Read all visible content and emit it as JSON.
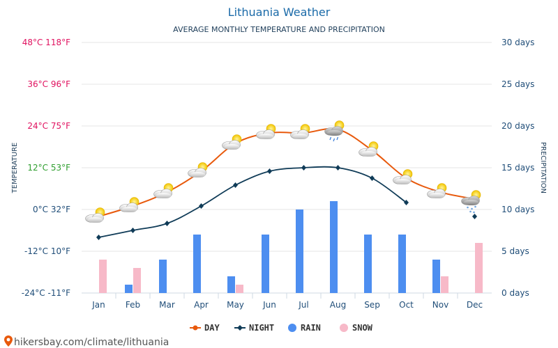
{
  "chart_data": {
    "type": "line+bar",
    "title": "Lithuania Weather",
    "subtitle": "AVERAGE MONTHLY TEMPERATURE AND PRECIPITATION",
    "categories": [
      "Jan",
      "Feb",
      "Mar",
      "Apr",
      "May",
      "Jun",
      "Jul",
      "Aug",
      "Sep",
      "Oct",
      "Nov",
      "Dec"
    ],
    "left_axis": {
      "label": "TEMPERATURE",
      "ylim_celsius": [
        -24,
        48
      ],
      "ticks": [
        {
          "value": 48,
          "label": "48°C 118°F",
          "color": "#e0115f"
        },
        {
          "value": 36,
          "label": "36°C 96°F",
          "color": "#e0115f"
        },
        {
          "value": 24,
          "label": "24°C 75°F",
          "color": "#e0115f"
        },
        {
          "value": 12,
          "label": "12°C 53°F",
          "color": "#2e9e2e"
        },
        {
          "value": 0,
          "label": "0°C 32°F",
          "color": "#1f4d78"
        },
        {
          "value": -12,
          "label": "-12°C 10°F",
          "color": "#1f4d78"
        },
        {
          "value": -24,
          "label": "-24°C -11°F",
          "color": "#1f4d78"
        }
      ]
    },
    "right_axis": {
      "label": "PRECIPITATION",
      "ylim_days": [
        0,
        30
      ],
      "ticks": [
        {
          "value": 30,
          "label": "30 days"
        },
        {
          "value": 25,
          "label": "25 days"
        },
        {
          "value": 20,
          "label": "20 days"
        },
        {
          "value": 15,
          "label": "15 days"
        },
        {
          "value": 10,
          "label": "10 days"
        },
        {
          "value": 5,
          "label": "5 days"
        },
        {
          "value": 0,
          "label": "0 days"
        }
      ]
    },
    "series": [
      {
        "name": "DAY",
        "kind": "line",
        "color": "#e8590c",
        "smooth": true,
        "values": [
          -2,
          1,
          5,
          11,
          19,
          22,
          22,
          23,
          17,
          9,
          5,
          3
        ]
      },
      {
        "name": "NIGHT",
        "kind": "line",
        "color": "#0f3b57",
        "markers": "diamond",
        "values": [
          -8,
          -6,
          -4,
          1,
          7,
          11,
          12,
          12,
          9,
          2,
          null,
          -2
        ]
      },
      {
        "name": "RAIN",
        "kind": "bar",
        "color": "#4d8ef0",
        "axis": "right",
        "values": [
          0,
          1,
          4,
          7,
          2,
          7,
          10,
          11,
          7,
          7,
          4,
          0
        ]
      },
      {
        "name": "SNOW",
        "kind": "bar",
        "color": "#f7b9c8",
        "axis": "right",
        "values": [
          4,
          3,
          0,
          0,
          1,
          0,
          0,
          0,
          0,
          0,
          2,
          6
        ]
      }
    ],
    "weather_icons": [
      "cloud-sun-icon",
      "cloud-sun-icon",
      "cloud-sun-icon",
      "cloud-sun-icon",
      "cloud-sun-icon",
      "cloud-sun-icon",
      "cloud-sun-icon",
      "cloud-sun-rain-icon",
      "cloud-sun-icon",
      "cloud-sun-icon",
      "cloud-sun-icon",
      "cloud-sun-snow-icon"
    ],
    "grid": true,
    "legend_position": "bottom-center"
  },
  "footer": {
    "text": "hikersbay.com/climate/lithuania",
    "icon": "map-pin-icon"
  }
}
